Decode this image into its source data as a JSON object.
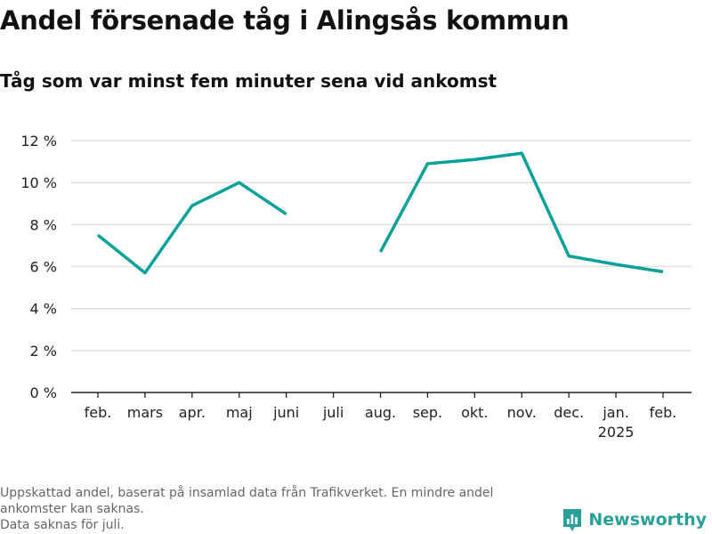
{
  "header": {
    "title": "Andel försenade tåg i Alingsås kommun",
    "subtitle": "Tåg som var minst fem minuter sena vid ankomst"
  },
  "footer": {
    "note_line1": "Uppskattad andel, baserat på insamlad data från Trafikverket. En mindre andel",
    "note_line2": "ankomster kan saknas.",
    "note_line3": "Data saknas för juli.",
    "brand": "Newsworthy"
  },
  "colors": {
    "line": "#0aa198",
    "grid": "#dddddd",
    "axis": "#222222",
    "brand": "#2aa198"
  },
  "chart_data": {
    "type": "line",
    "title": "Andel försenade tåg i Alingsås kommun",
    "subtitle": "Tåg som var minst fem minuter sena vid ankomst",
    "categories": [
      "feb.",
      "mars",
      "apr.",
      "maj",
      "juni",
      "juli",
      "aug.",
      "sep.",
      "okt.",
      "nov.",
      "dec.",
      "jan.",
      "feb."
    ],
    "category_sublabels": [
      "",
      "",
      "",
      "",
      "",
      "",
      "",
      "",
      "",
      "",
      "",
      "2025",
      ""
    ],
    "series": [
      {
        "values": [
          7.5,
          5.7,
          8.9,
          10.0,
          8.5,
          null,
          6.7,
          10.9,
          11.1,
          11.4,
          6.5,
          6.1,
          5.75
        ]
      }
    ],
    "ylim": [
      0,
      12
    ],
    "yticks": [
      0,
      2,
      4,
      6,
      8,
      10,
      12
    ],
    "ytick_labels": [
      "0 %",
      "2 %",
      "4 %",
      "6 %",
      "8 %",
      "10 %",
      "12 %"
    ],
    "grid": true,
    "legend": "none"
  }
}
